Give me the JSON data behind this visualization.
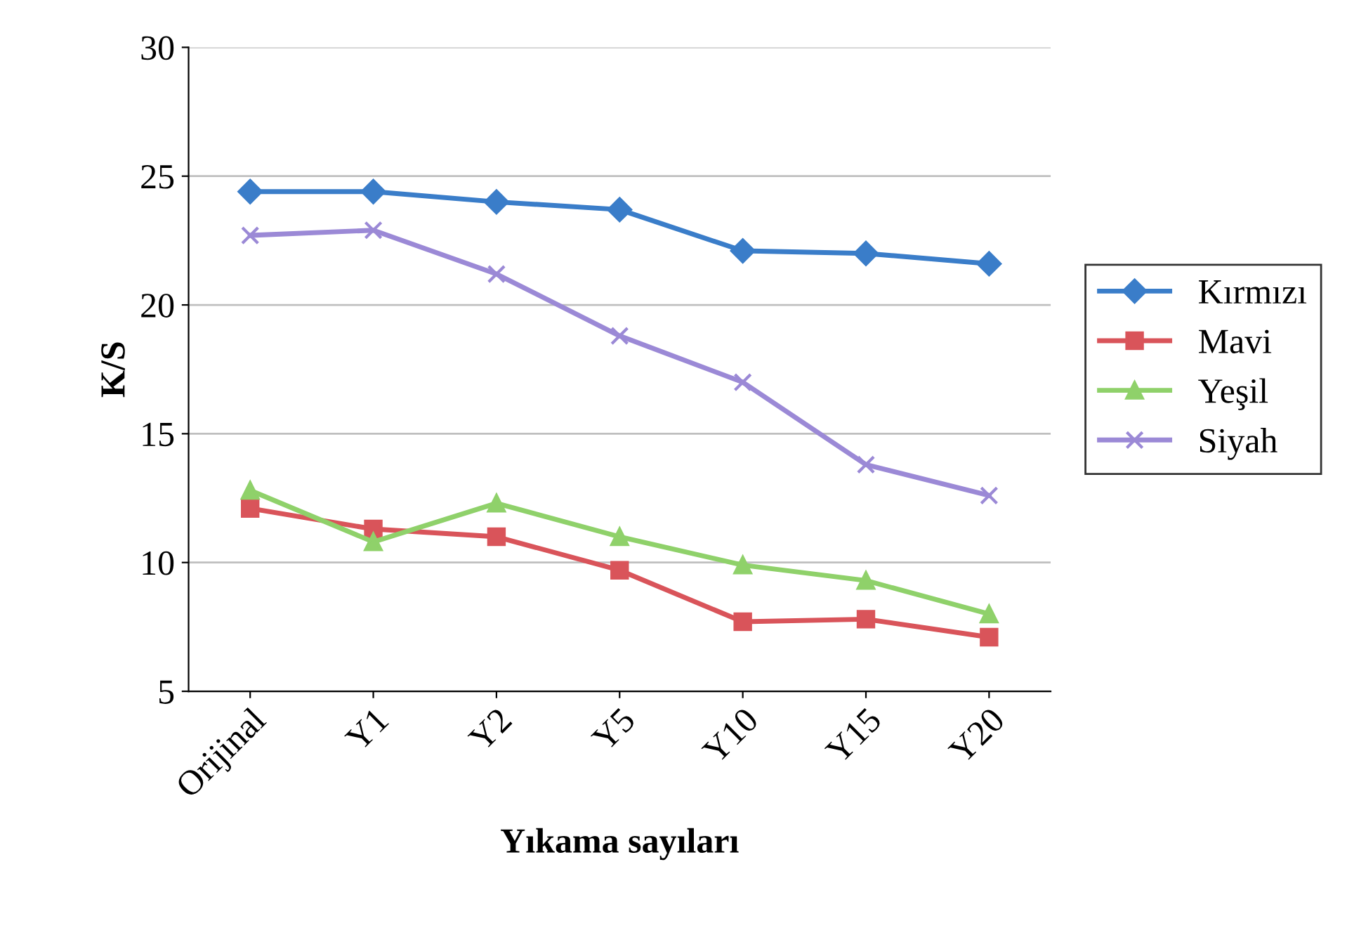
{
  "chart_data": {
    "type": "line",
    "xlabel": "Yıkama sayıları",
    "ylabel": "K/S",
    "categories": [
      "Orijinal",
      "Y1",
      "Y2",
      "Y5",
      "Y10",
      "Y15",
      "Y20"
    ],
    "series": [
      {
        "name": "Kırmızı",
        "color": "#3a7dc9",
        "marker": "diamond",
        "values": [
          24.4,
          24.4,
          24.0,
          23.7,
          22.1,
          22.0,
          21.6
        ]
      },
      {
        "name": "Mavi",
        "color": "#d9545a",
        "marker": "square",
        "values": [
          12.1,
          11.3,
          11.0,
          9.7,
          7.7,
          7.8,
          7.1
        ]
      },
      {
        "name": "Yeşil",
        "color": "#8fd16a",
        "marker": "triangle",
        "values": [
          12.8,
          10.8,
          12.3,
          11.0,
          9.9,
          9.3,
          8.0
        ]
      },
      {
        "name": "Siyah",
        "color": "#9b89d6",
        "marker": "cross",
        "values": [
          22.7,
          22.9,
          21.2,
          18.8,
          17.0,
          13.8,
          12.6
        ]
      }
    ],
    "ylim": [
      5,
      30
    ],
    "yticks": [
      5,
      10,
      15,
      20,
      25,
      30
    ],
    "grid": "y",
    "legend": "right",
    "line_style": "solid"
  }
}
